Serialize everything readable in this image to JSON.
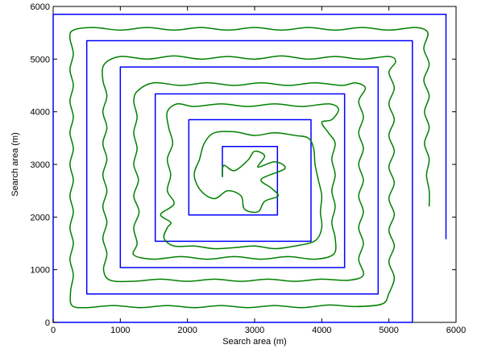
{
  "chart_data": {
    "type": "line",
    "title": "",
    "xlabel": "Search area (m)",
    "ylabel": "Search area (m)",
    "xlim": [
      0,
      6000
    ],
    "ylim": [
      0,
      6000
    ],
    "xticks": [
      0,
      1000,
      2000,
      3000,
      4000,
      5000,
      6000
    ],
    "yticks": [
      0,
      1000,
      2000,
      3000,
      4000,
      5000,
      6000
    ],
    "grid": false,
    "legend": "none",
    "series": [
      {
        "color": "#0000ff",
        "style": "planned square spiral",
        "points": [
          [
            2520,
            2760
          ],
          [
            2520,
            3340
          ],
          [
            3340,
            3340
          ],
          [
            3340,
            2040
          ],
          [
            2020,
            2040
          ],
          [
            2020,
            3850
          ],
          [
            3840,
            3850
          ],
          [
            3840,
            1540
          ],
          [
            1520,
            1540
          ],
          [
            1520,
            4340
          ],
          [
            4340,
            4340
          ],
          [
            4340,
            1040
          ],
          [
            1000,
            1040
          ],
          [
            1000,
            4850
          ],
          [
            4840,
            4850
          ],
          [
            4840,
            540
          ],
          [
            500,
            540
          ],
          [
            500,
            5350
          ],
          [
            5350,
            5350
          ],
          [
            5350,
            0
          ],
          [
            0,
            0
          ],
          [
            0,
            5850
          ],
          [
            5850,
            5850
          ],
          [
            5850,
            1580
          ]
        ]
      },
      {
        "color": "#008000",
        "style": "executed wavy spiral",
        "points": [
          [
            2520,
            2760
          ],
          [
            2540,
            2980
          ],
          [
            2700,
            2880
          ],
          [
            2900,
            3080
          ],
          [
            3000,
            3250
          ],
          [
            3150,
            3160
          ],
          [
            3050,
            2950
          ],
          [
            3300,
            3050
          ],
          [
            3450,
            2920
          ],
          [
            3100,
            2720
          ],
          [
            3250,
            2550
          ],
          [
            3350,
            2400
          ],
          [
            3150,
            2300
          ],
          [
            3050,
            2100
          ],
          [
            2850,
            2150
          ],
          [
            2800,
            2400
          ],
          [
            2600,
            2500
          ],
          [
            2400,
            2350
          ],
          [
            2200,
            2500
          ],
          [
            2100,
            2800
          ],
          [
            2180,
            3100
          ],
          [
            2250,
            3400
          ],
          [
            2400,
            3600
          ],
          [
            2700,
            3620
          ],
          [
            3000,
            3550
          ],
          [
            3300,
            3600
          ],
          [
            3600,
            3550
          ],
          [
            3800,
            3500
          ],
          [
            3880,
            3300
          ],
          [
            3900,
            3000
          ],
          [
            3950,
            2700
          ],
          [
            4000,
            2400
          ],
          [
            3980,
            2100
          ],
          [
            4000,
            1800
          ],
          [
            3900,
            1550
          ],
          [
            3600,
            1450
          ],
          [
            3300,
            1400
          ],
          [
            3000,
            1450
          ],
          [
            2700,
            1420
          ],
          [
            2400,
            1400
          ],
          [
            2100,
            1450
          ],
          [
            1800,
            1450
          ],
          [
            1650,
            1600
          ],
          [
            1700,
            1800
          ],
          [
            1750,
            1900
          ],
          [
            1600,
            2050
          ],
          [
            1800,
            2250
          ],
          [
            1700,
            2500
          ],
          [
            1750,
            2800
          ],
          [
            1700,
            3100
          ],
          [
            1780,
            3400
          ],
          [
            1720,
            3700
          ],
          [
            1700,
            4000
          ],
          [
            1850,
            4150
          ],
          [
            2100,
            4100
          ],
          [
            2500,
            4150
          ],
          [
            2900,
            4100
          ],
          [
            3300,
            4150
          ],
          [
            3700,
            4100
          ],
          [
            4100,
            4150
          ],
          [
            4250,
            4050
          ],
          [
            4150,
            3850
          ],
          [
            4000,
            3800
          ],
          [
            4100,
            3600
          ],
          [
            4200,
            3400
          ],
          [
            4150,
            3100
          ],
          [
            4200,
            2800
          ],
          [
            4150,
            2500
          ],
          [
            4200,
            2200
          ],
          [
            4150,
            1900
          ],
          [
            4200,
            1600
          ],
          [
            4180,
            1300
          ],
          [
            3900,
            1200
          ],
          [
            3500,
            1250
          ],
          [
            3100,
            1200
          ],
          [
            2700,
            1250
          ],
          [
            2300,
            1200
          ],
          [
            1900,
            1250
          ],
          [
            1500,
            1200
          ],
          [
            1200,
            1280
          ],
          [
            1250,
            1500
          ],
          [
            1200,
            1800
          ],
          [
            1280,
            2100
          ],
          [
            1200,
            2400
          ],
          [
            1270,
            2700
          ],
          [
            1200,
            3000
          ],
          [
            1250,
            3300
          ],
          [
            1200,
            3600
          ],
          [
            1250,
            3900
          ],
          [
            1200,
            4200
          ],
          [
            1260,
            4400
          ],
          [
            1500,
            4550
          ],
          [
            1900,
            4500
          ],
          [
            2300,
            4550
          ],
          [
            2700,
            4500
          ],
          [
            3100,
            4550
          ],
          [
            3500,
            4500
          ],
          [
            3900,
            4550
          ],
          [
            4300,
            4500
          ],
          [
            4500,
            4550
          ],
          [
            4650,
            4450
          ],
          [
            4550,
            4200
          ],
          [
            4620,
            3900
          ],
          [
            4550,
            3600
          ],
          [
            4620,
            3300
          ],
          [
            4550,
            3000
          ],
          [
            4620,
            2700
          ],
          [
            4550,
            2400
          ],
          [
            4620,
            2100
          ],
          [
            4550,
            1800
          ],
          [
            4620,
            1500
          ],
          [
            4550,
            1200
          ],
          [
            4620,
            900
          ],
          [
            4400,
            800
          ],
          [
            4000,
            820
          ],
          [
            3600,
            780
          ],
          [
            3200,
            820
          ],
          [
            2800,
            780
          ],
          [
            2400,
            820
          ],
          [
            2000,
            780
          ],
          [
            1600,
            820
          ],
          [
            1200,
            780
          ],
          [
            850,
            800
          ],
          [
            750,
            1000
          ],
          [
            800,
            1300
          ],
          [
            740,
            1600
          ],
          [
            800,
            1900
          ],
          [
            740,
            2200
          ],
          [
            800,
            2500
          ],
          [
            740,
            2800
          ],
          [
            800,
            3100
          ],
          [
            740,
            3400
          ],
          [
            800,
            3700
          ],
          [
            740,
            4000
          ],
          [
            800,
            4300
          ],
          [
            740,
            4600
          ],
          [
            760,
            4900
          ],
          [
            1000,
            5050
          ],
          [
            1400,
            5000
          ],
          [
            1800,
            5060
          ],
          [
            2200,
            5000
          ],
          [
            2600,
            5050
          ],
          [
            3000,
            5000
          ],
          [
            3400,
            5060
          ],
          [
            3800,
            5000
          ],
          [
            4200,
            5050
          ],
          [
            4600,
            5000
          ],
          [
            5000,
            5050
          ],
          [
            5100,
            4950
          ],
          [
            5000,
            4750
          ],
          [
            5080,
            4450
          ],
          [
            5000,
            4150
          ],
          [
            5080,
            3850
          ],
          [
            5000,
            3550
          ],
          [
            5080,
            3250
          ],
          [
            5000,
            2950
          ],
          [
            5080,
            2650
          ],
          [
            5000,
            2350
          ],
          [
            5080,
            2050
          ],
          [
            5000,
            1750
          ],
          [
            5080,
            1450
          ],
          [
            5000,
            1150
          ],
          [
            5080,
            850
          ],
          [
            5000,
            550
          ],
          [
            4900,
            350
          ],
          [
            4500,
            300
          ],
          [
            4100,
            330
          ],
          [
            3700,
            280
          ],
          [
            3300,
            320
          ],
          [
            2900,
            280
          ],
          [
            2500,
            320
          ],
          [
            2100,
            280
          ],
          [
            1700,
            320
          ],
          [
            1300,
            280
          ],
          [
            900,
            320
          ],
          [
            500,
            280
          ],
          [
            280,
            320
          ],
          [
            260,
            600
          ],
          [
            300,
            900
          ],
          [
            250,
            1200
          ],
          [
            300,
            1500
          ],
          [
            250,
            1800
          ],
          [
            300,
            2100
          ],
          [
            250,
            2400
          ],
          [
            300,
            2700
          ],
          [
            250,
            3000
          ],
          [
            300,
            3300
          ],
          [
            250,
            3600
          ],
          [
            300,
            3900
          ],
          [
            250,
            4200
          ],
          [
            300,
            4500
          ],
          [
            250,
            4800
          ],
          [
            300,
            5100
          ],
          [
            250,
            5400
          ],
          [
            300,
            5550
          ],
          [
            600,
            5600
          ],
          [
            1000,
            5550
          ],
          [
            1400,
            5600
          ],
          [
            1800,
            5550
          ],
          [
            2200,
            5600
          ],
          [
            2600,
            5550
          ],
          [
            3000,
            5600
          ],
          [
            3400,
            5550
          ],
          [
            3800,
            5600
          ],
          [
            4200,
            5550
          ],
          [
            4600,
            5600
          ],
          [
            5000,
            5550
          ],
          [
            5400,
            5600
          ],
          [
            5580,
            5500
          ],
          [
            5520,
            5200
          ],
          [
            5600,
            4900
          ],
          [
            5520,
            4600
          ],
          [
            5600,
            4300
          ],
          [
            5530,
            4000
          ],
          [
            5600,
            3700
          ],
          [
            5530,
            3400
          ],
          [
            5600,
            3100
          ],
          [
            5560,
            2800
          ],
          [
            5600,
            2500
          ],
          [
            5600,
            2200
          ]
        ]
      }
    ]
  }
}
